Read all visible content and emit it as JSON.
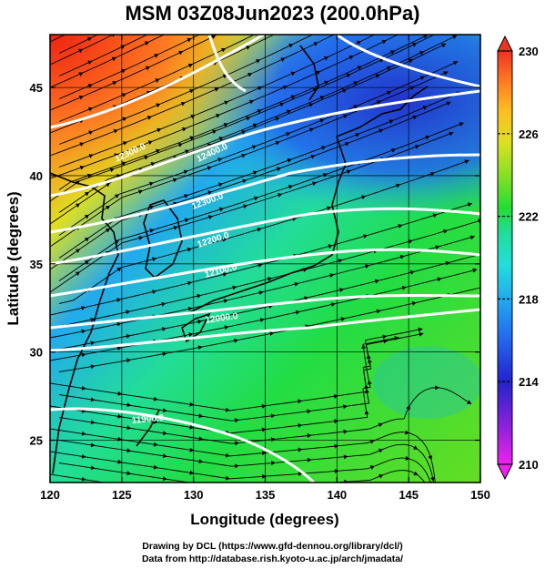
{
  "title": "MSM 03Z08Jun2023 (200.0hPa)",
  "xlabel": "Longitude (degrees)",
  "ylabel": "Latitude  (degrees)",
  "x_ticks": [
    "120",
    "125",
    "130",
    "135",
    "140",
    "145",
    "150"
  ],
  "y_ticks": [
    "25",
    "30",
    "35",
    "40",
    "45"
  ],
  "colorbar": {
    "labels": [
      "230",
      "226",
      "222",
      "218",
      "214",
      "210"
    ],
    "min": 210,
    "max": 230,
    "colors": [
      "#ee22ee",
      "#9922dd",
      "#2222cc",
      "#2266ee",
      "#22aaee",
      "#22dddd",
      "#22dd99",
      "#22dd33",
      "#88e022",
      "#dde022",
      "#ffbb22",
      "#ff7722",
      "#ee3322"
    ]
  },
  "contour_labels": [
    "12300.0",
    "12400.0",
    "12300.0",
    "12200.0",
    "12100.0",
    "12000.0",
    "11900.0"
  ],
  "footer": {
    "line1": "Drawing by DCL (https://www.gfd-dennou.org/library/dcl/)",
    "line2": "Data from http://database.rish.kyoto-u.ac.jp/arch/jmadata/"
  },
  "colors": {
    "contour": "#ffffff",
    "vector": "#000000",
    "coast": "#000000"
  }
}
